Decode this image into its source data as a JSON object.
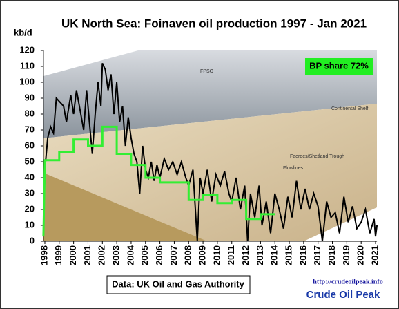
{
  "chart_data": {
    "type": "line",
    "title": "UK North Sea: Foinaven oil production 1997 - Jan 2021",
    "y_label": "kb/d",
    "annotation": "BP share 72%",
    "source": "Data: UK Oil and Gas Authority",
    "website": "http://crudeoilpeak.info",
    "brand": "Crude Oil Peak",
    "illustration_labels": [
      "FPSO",
      "Continental Shelf",
      "Faeroes/Shetland Trough",
      "Flowlines"
    ],
    "xlim": [
      1997.9,
      2021.1
    ],
    "xticks": [
      1998,
      1999,
      2000,
      2001,
      2002,
      2003,
      2004,
      2005,
      2006,
      2007,
      2008,
      2009,
      2010,
      2011,
      2012,
      2013,
      2014,
      2015,
      2016,
      2017,
      2018,
      2019,
      2020,
      2021
    ],
    "ylim": [
      0,
      120
    ],
    "yticks": [
      0,
      10,
      20,
      30,
      40,
      50,
      60,
      70,
      80,
      90,
      100,
      110,
      120
    ],
    "grid": false,
    "series": [
      {
        "color": "#000000",
        "x": [
          1997.9,
          1998.0,
          1998.2,
          1998.4,
          1998.6,
          1998.8,
          1999.0,
          1999.3,
          1999.5,
          1999.8,
          2000.0,
          2000.2,
          2000.4,
          2000.7,
          2000.9,
          2001.1,
          2001.3,
          2001.5,
          2001.7,
          2001.9,
          2002.0,
          2002.2,
          2002.4,
          2002.6,
          2002.8,
          2003.0,
          2003.2,
          2003.4,
          2003.6,
          2003.8,
          2004.0,
          2004.2,
          2004.4,
          2004.6,
          2004.8,
          2005.0,
          2005.2,
          2005.4,
          2005.6,
          2005.8,
          2006.0,
          2006.3,
          2006.6,
          2006.9,
          2007.2,
          2007.5,
          2007.8,
          2008.0,
          2008.3,
          2008.6,
          2008.8,
          2009.0,
          2009.3,
          2009.6,
          2009.9,
          2010.2,
          2010.5,
          2010.8,
          2011.0,
          2011.3,
          2011.6,
          2011.9,
          2012.1,
          2012.3,
          2012.6,
          2012.9,
          2013.1,
          2013.4,
          2013.7,
          2014.0,
          2014.3,
          2014.6,
          2014.9,
          2015.2,
          2015.5,
          2015.8,
          2016.1,
          2016.4,
          2016.7,
          2017.0,
          2017.3,
          2017.6,
          2017.9,
          2018.2,
          2018.5,
          2018.8,
          2019.1,
          2019.4,
          2019.7,
          2020.0,
          2020.3,
          2020.6,
          2020.9,
          2021.0,
          2021.1
        ],
        "values": [
          4,
          45,
          65,
          72,
          68,
          90,
          88,
          85,
          75,
          92,
          80,
          95,
          85,
          70,
          95,
          75,
          55,
          80,
          100,
          85,
          112,
          108,
          95,
          105,
          80,
          100,
          75,
          85,
          60,
          78,
          65,
          55,
          50,
          30,
          60,
          45,
          40,
          50,
          38,
          48,
          40,
          52,
          45,
          50,
          42,
          50,
          40,
          35,
          45,
          0,
          40,
          30,
          45,
          25,
          42,
          35,
          44,
          30,
          25,
          40,
          20,
          35,
          0,
          30,
          15,
          35,
          10,
          25,
          5,
          30,
          20,
          8,
          28,
          15,
          38,
          20,
          33,
          20,
          30,
          22,
          0,
          25,
          15,
          18,
          5,
          28,
          12,
          22,
          8,
          12,
          20,
          5,
          14,
          3,
          10
        ]
      },
      {
        "color": "#33ee33",
        "x": [
          1997.9,
          1998,
          1999,
          1999,
          2000,
          2000,
          2001,
          2001,
          2002,
          2002,
          2003,
          2003,
          2004,
          2004,
          2005,
          2005,
          2006,
          2006,
          2008,
          2008,
          2009,
          2009,
          2010,
          2010,
          2011,
          2011,
          2012,
          2012,
          2013,
          2013,
          2014
        ],
        "values": [
          3,
          51,
          51,
          56,
          56,
          64,
          64,
          60,
          60,
          72,
          72,
          55,
          55,
          48,
          48,
          40,
          40,
          37,
          37,
          26,
          26,
          29,
          29,
          24,
          24,
          26,
          26,
          14,
          14,
          17,
          17
        ]
      }
    ]
  }
}
